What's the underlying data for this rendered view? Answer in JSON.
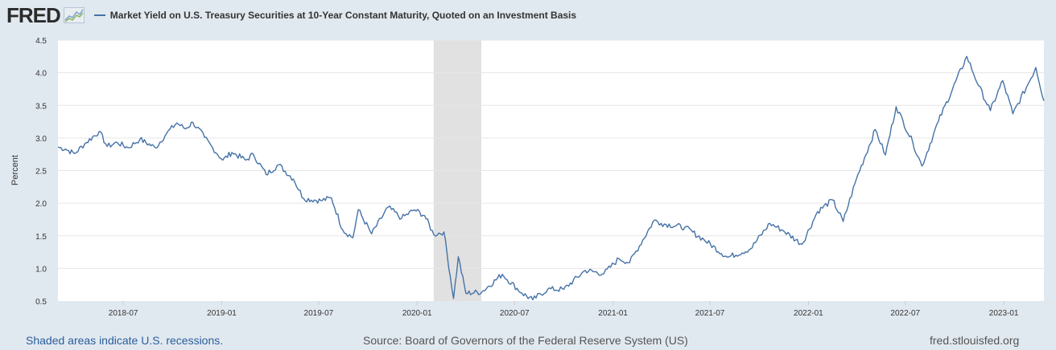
{
  "logo": {
    "text": "FRED"
  },
  "chart_data": {
    "type": "line",
    "title": "Market Yield on U.S. Treasury Securities at 10-Year Constant Maturity, Quoted on an Investment Basis",
    "ylabel": "Percent",
    "xlabel": "",
    "ylim": [
      0.5,
      4.5
    ],
    "xlim": [
      "2018-03-01",
      "2023-03-17"
    ],
    "y_ticks": [
      "0.5",
      "1.0",
      "1.5",
      "2.0",
      "2.5",
      "3.0",
      "3.5",
      "4.0",
      "4.5"
    ],
    "x_ticks": [
      "2018-07",
      "2019-01",
      "2019-07",
      "2020-01",
      "2020-07",
      "2021-01",
      "2021-07",
      "2022-01",
      "2022-07",
      "2023-01"
    ],
    "grid": true,
    "line_color": "#4572a7",
    "recession_color": "#e1e1e1",
    "recessions": [
      {
        "start": "2020-02-01",
        "end": "2020-04-30"
      }
    ],
    "series": [
      {
        "name": "Market Yield on U.S. Treasury Securities at 10-Year Constant Maturity, Quoted on an Investment Basis",
        "points": [
          [
            "2018-03-01",
            2.86
          ],
          [
            "2018-03-15",
            2.83
          ],
          [
            "2018-04-01",
            2.76
          ],
          [
            "2018-04-20",
            2.91
          ],
          [
            "2018-05-17",
            3.1
          ],
          [
            "2018-06-01",
            2.87
          ],
          [
            "2018-06-20",
            2.93
          ],
          [
            "2018-07-10",
            2.85
          ],
          [
            "2018-08-01",
            2.98
          ],
          [
            "2018-08-30",
            2.85
          ],
          [
            "2018-09-20",
            3.07
          ],
          [
            "2018-10-09",
            3.23
          ],
          [
            "2018-10-25",
            3.14
          ],
          [
            "2018-11-08",
            3.24
          ],
          [
            "2018-11-30",
            3.01
          ],
          [
            "2018-12-15",
            2.85
          ],
          [
            "2019-01-03",
            2.66
          ],
          [
            "2019-01-20",
            2.78
          ],
          [
            "2019-02-15",
            2.66
          ],
          [
            "2019-03-01",
            2.75
          ],
          [
            "2019-03-25",
            2.44
          ],
          [
            "2019-04-17",
            2.59
          ],
          [
            "2019-05-15",
            2.37
          ],
          [
            "2019-06-03",
            2.07
          ],
          [
            "2019-07-05",
            2.04
          ],
          [
            "2019-07-25",
            2.08
          ],
          [
            "2019-08-15",
            1.59
          ],
          [
            "2019-09-03",
            1.47
          ],
          [
            "2019-09-13",
            1.9
          ],
          [
            "2019-10-08",
            1.53
          ],
          [
            "2019-11-08",
            1.94
          ],
          [
            "2019-12-03",
            1.77
          ],
          [
            "2019-12-27",
            1.9
          ],
          [
            "2020-01-15",
            1.81
          ],
          [
            "2020-02-01",
            1.52
          ],
          [
            "2020-02-20",
            1.56
          ],
          [
            "2020-03-09",
            0.54
          ],
          [
            "2020-03-18",
            1.18
          ],
          [
            "2020-04-01",
            0.62
          ],
          [
            "2020-05-01",
            0.64
          ],
          [
            "2020-06-08",
            0.91
          ],
          [
            "2020-07-15",
            0.62
          ],
          [
            "2020-08-04",
            0.52
          ],
          [
            "2020-09-01",
            0.68
          ],
          [
            "2020-10-01",
            0.68
          ],
          [
            "2020-11-10",
            0.97
          ],
          [
            "2020-12-15",
            0.92
          ],
          [
            "2021-01-12",
            1.15
          ],
          [
            "2021-02-01",
            1.09
          ],
          [
            "2021-03-19",
            1.74
          ],
          [
            "2021-04-01",
            1.69
          ],
          [
            "2021-05-15",
            1.63
          ],
          [
            "2021-06-20",
            1.44
          ],
          [
            "2021-08-03",
            1.17
          ],
          [
            "2021-09-15",
            1.3
          ],
          [
            "2021-10-21",
            1.69
          ],
          [
            "2021-11-15",
            1.58
          ],
          [
            "2021-12-20",
            1.37
          ],
          [
            "2022-01-18",
            1.87
          ],
          [
            "2022-02-15",
            2.05
          ],
          [
            "2022-03-07",
            1.72
          ],
          [
            "2022-04-01",
            2.38
          ],
          [
            "2022-05-06",
            3.13
          ],
          [
            "2022-05-25",
            2.74
          ],
          [
            "2022-06-14",
            3.48
          ],
          [
            "2022-07-15",
            2.93
          ],
          [
            "2022-08-01",
            2.57
          ],
          [
            "2022-09-01",
            3.26
          ],
          [
            "2022-10-24",
            4.25
          ],
          [
            "2022-11-15",
            3.8
          ],
          [
            "2022-12-07",
            3.42
          ],
          [
            "2022-12-30",
            3.88
          ],
          [
            "2023-01-18",
            3.37
          ],
          [
            "2023-02-15",
            3.82
          ],
          [
            "2023-03-02",
            4.08
          ],
          [
            "2023-03-17",
            3.57
          ]
        ]
      }
    ]
  },
  "footer": {
    "note": "Shaded areas indicate U.S. recessions.",
    "source": "Source: Board of Governors of the Federal Reserve System (US)",
    "url": "fred.stlouisfed.org"
  }
}
